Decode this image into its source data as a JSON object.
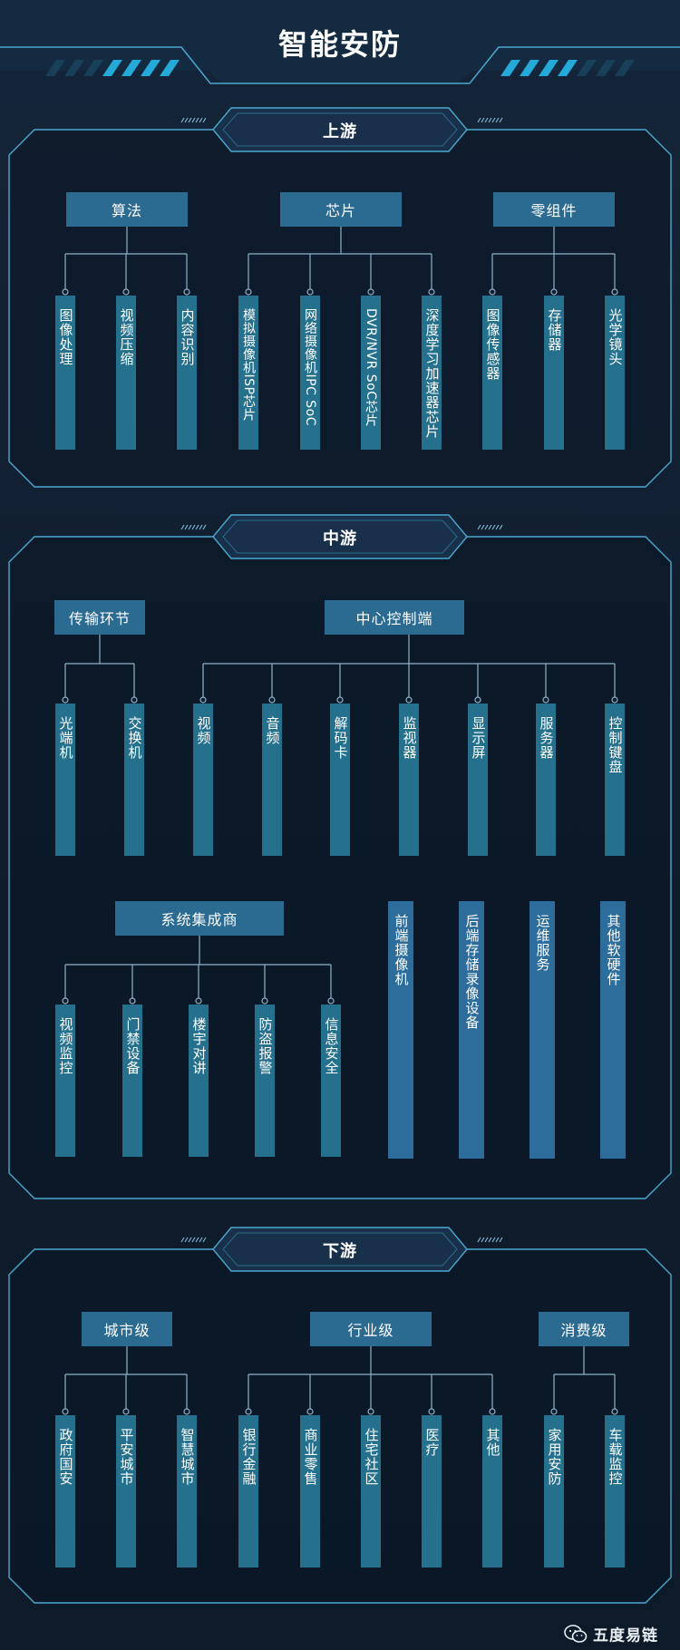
{
  "title": "智能安防",
  "footer": {
    "brand": "五度易链",
    "icon": "wechat-icon"
  },
  "colors": {
    "background": "#122235",
    "node": "#2b6a91",
    "leaf": "#24708d",
    "line": "#8fb3c9",
    "frame": "#4aa8cf",
    "accent": "#22a6d6"
  },
  "upstream": {
    "title": "上游",
    "groups": [
      {
        "label": "算法",
        "leaves": [
          "图像处理",
          "视频压缩",
          "内容识别"
        ]
      },
      {
        "label": "芯片",
        "leaves": [
          "模拟摄像机ISP芯片",
          "网络摄像机IPC SoC",
          "DVR/NVR SoC芯片",
          "深度学习加速器芯片"
        ]
      },
      {
        "label": "零组件",
        "leaves": [
          "图像传感器",
          "存储器",
          "光学镜头"
        ]
      }
    ]
  },
  "midstream": {
    "title": "中游",
    "groups": [
      {
        "label": "传输环节",
        "leaves": [
          "光端机",
          "交换机"
        ]
      },
      {
        "label": "中心控制端",
        "leaves": [
          "视频",
          "音频",
          "解码卡",
          "监视器",
          "显示屏",
          "服务器",
          "控制键盘"
        ]
      },
      {
        "label": "系统集成商",
        "leaves": [
          "视频监控",
          "门禁设备",
          "楼宇对讲",
          "防盗报警",
          "信息安全"
        ]
      }
    ],
    "standalone": [
      "前端摄像机",
      "后端存储录像设备",
      "运维服务",
      "其他软硬件"
    ]
  },
  "downstream": {
    "title": "下游",
    "groups": [
      {
        "label": "城市级",
        "leaves": [
          "政府国安",
          "平安城市",
          "智慧城市"
        ]
      },
      {
        "label": "行业级",
        "leaves": [
          "银行金融",
          "商业零售",
          "住宅社区",
          "医疗",
          "其他"
        ]
      },
      {
        "label": "消费级",
        "leaves": [
          "家用安防",
          "车载监控"
        ]
      }
    ]
  }
}
